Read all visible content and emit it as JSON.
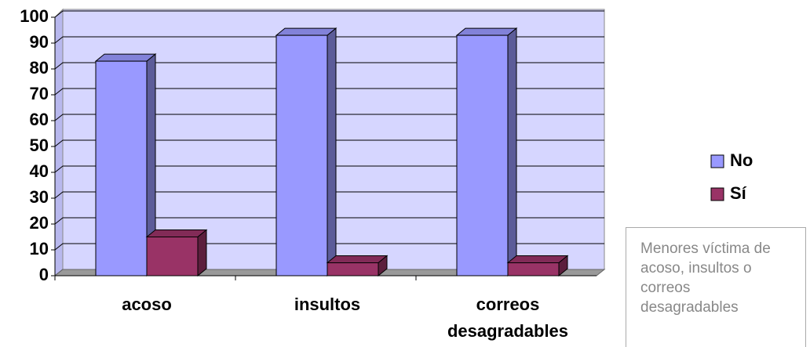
{
  "chart_data": {
    "type": "bar3d",
    "categories": [
      "acoso",
      "insultos",
      "correos desagradables"
    ],
    "series": [
      {
        "name": "No",
        "color": "#9999ff",
        "values": [
          83,
          93,
          93
        ]
      },
      {
        "name": "Sí",
        "color": "#993366",
        "values": [
          15,
          5,
          5
        ]
      }
    ],
    "ylim": [
      0,
      100
    ],
    "yticks": [
      0,
      10,
      20,
      30,
      40,
      50,
      60,
      70,
      80,
      90,
      100
    ],
    "grid": true,
    "legend": "right",
    "note": "Menores víctima de acoso, insultos o correos desagradables"
  }
}
